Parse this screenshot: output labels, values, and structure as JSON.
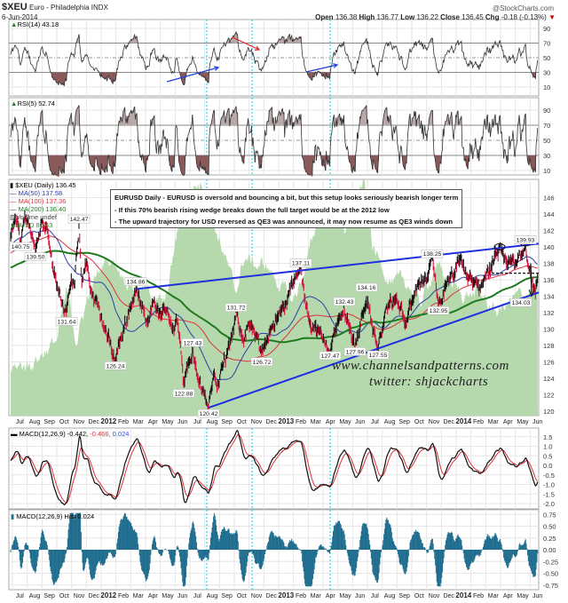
{
  "header": {
    "symbol": "$XEU",
    "name": "Euro - Philadelphia INDX",
    "date": "6-Jun-2014",
    "copyright": "@StockCharts.com",
    "open_label": "Open",
    "open": "136.38",
    "high_label": "High",
    "high": "136.77",
    "low_label": "Low",
    "low": "136.22",
    "close_label": "Close",
    "close": "136.45",
    "chg_label": "Chg",
    "chg": "-0.18 (-0.13%)",
    "chg_arrow": "▼"
  },
  "panels": {
    "rsi14_label": "RSI(14) 43.18",
    "rsi5_label": "RSI(5) 52.74",
    "price_label": "$XEU (Daily) 136.45",
    "ma50_label": "MA(50) 137.58",
    "ma100_label": "MA(100) 137.36",
    "ma200_label": "MA(200) 136.40",
    "volume_label": "Volume undef",
    "usd_label": "$USD 80.43",
    "macd_label": "MACD(12,26,9) -0.442,",
    "macd_signal": " -0.466,",
    "macd_hist_val": " 0.024",
    "hist_label": "MACD(12,26,9) Hist 0.024"
  },
  "note": {
    "line1": "EURUSD Daily - EURUSD is oversold and bouncing a bit, but this setup looks seriously bearish longer term",
    "line2": "- If this 70% bearish rising wedge breaks down the full target would be at the 2012 low",
    "line3": "- The upward trajectory for USD reversed as QE3 was announced, it may now resume as QE3 winds down"
  },
  "watermark": {
    "site": "www.channelsandpatterns.com",
    "twitter": "twitter: shjackcharts"
  },
  "colors": {
    "ma50": "#2b3fa8",
    "ma100": "#e0303c",
    "ma200": "#1e7a1e",
    "usd_area": "#b5d9ad",
    "trend": "#1f2fe0",
    "up": "#111111",
    "down": "#d0103a",
    "rsi_low": "#8a5a5a",
    "hist": "#1f6d8e",
    "event": "#00d0e0"
  },
  "chart_data": {
    "type": "line",
    "title": "$XEU Euro - Philadelphia INDX (Daily)",
    "x_ticks": [
      "Jul",
      "Aug",
      "Sep",
      "Oct",
      "Nov",
      "Dec",
      "2012",
      "Feb",
      "Mar",
      "Apr",
      "May",
      "Jun",
      "Jul",
      "Aug",
      "Sep",
      "Oct",
      "Nov",
      "Dec",
      "2013",
      "Feb",
      "Mar",
      "Apr",
      "May",
      "Jun",
      "Jul",
      "Aug",
      "Sep",
      "Oct",
      "Nov",
      "Dec",
      "2014",
      "Feb",
      "Mar",
      "Apr",
      "May",
      "Jun"
    ],
    "price_ticks": [
      120,
      122,
      124,
      126,
      128,
      130,
      132,
      134,
      136,
      138,
      140,
      142,
      144,
      146
    ],
    "rsi_ticks": [
      10,
      30,
      50,
      70,
      90
    ],
    "macd_ticks": [
      "1.5",
      "1.0",
      "0.5",
      "0.0",
      "-0.5",
      "-1.0",
      "-1.5",
      "-2.0"
    ],
    "hist_ticks": [
      "0.75",
      "0.50",
      "0.25",
      "0.00",
      "-0.25",
      "-0.50",
      "-0.75"
    ],
    "price_anchors": [
      [
        2011.49,
        141
      ],
      [
        2011.52,
        143.8
      ],
      [
        2011.545,
        140.75
      ],
      [
        2011.57,
        144.2
      ],
      [
        2011.6,
        142
      ],
      [
        2011.63,
        139.5
      ],
      [
        2011.66,
        143
      ],
      [
        2011.7,
        142.5
      ],
      [
        2011.73,
        137
      ],
      [
        2011.76,
        135
      ],
      [
        2011.805,
        131.64
      ],
      [
        2011.83,
        136
      ],
      [
        2011.85,
        135
      ],
      [
        2011.875,
        142.47
      ],
      [
        2011.89,
        136
      ],
      [
        2011.92,
        138
      ],
      [
        2011.95,
        134
      ],
      [
        2011.98,
        132.5
      ],
      [
        2012.02,
        130
      ],
      [
        2012.08,
        126.24
      ],
      [
        2012.1,
        128
      ],
      [
        2012.14,
        131
      ],
      [
        2012.195,
        134.86
      ],
      [
        2012.25,
        131
      ],
      [
        2012.3,
        133.5
      ],
      [
        2012.33,
        131.5
      ],
      [
        2012.37,
        132.5
      ],
      [
        2012.4,
        130.5
      ],
      [
        2012.43,
        131
      ],
      [
        2012.445,
        128
      ],
      [
        2012.465,
        122.88
      ],
      [
        2012.49,
        126
      ],
      [
        2012.515,
        127.43
      ],
      [
        2012.54,
        124
      ],
      [
        2012.57,
        123
      ],
      [
        2012.605,
        120.42
      ],
      [
        2012.63,
        124.5
      ],
      [
        2012.66,
        123.5
      ],
      [
        2012.7,
        126.5
      ],
      [
        2012.73,
        128
      ],
      [
        2012.76,
        131.72
      ],
      [
        2012.8,
        129
      ],
      [
        2012.83,
        130.5
      ],
      [
        2012.86,
        129.5
      ],
      [
        2012.905,
        126.72
      ],
      [
        2012.93,
        129
      ],
      [
        2012.96,
        130.5
      ],
      [
        2013.0,
        131.5
      ],
      [
        2013.04,
        133
      ],
      [
        2013.08,
        135.5
      ],
      [
        2013.125,
        137.11
      ],
      [
        2013.15,
        133
      ],
      [
        2013.18,
        131
      ],
      [
        2013.22,
        129.5
      ],
      [
        2013.29,
        127.47
      ],
      [
        2013.33,
        130.5
      ],
      [
        2013.37,
        132.43
      ],
      [
        2013.4,
        130
      ],
      [
        2013.43,
        127.96
      ],
      [
        2013.46,
        130.5
      ],
      [
        2013.495,
        134.16
      ],
      [
        2013.52,
        131
      ],
      [
        2013.56,
        127.55
      ],
      [
        2013.59,
        130.5
      ],
      [
        2013.62,
        133
      ],
      [
        2013.66,
        133.5
      ],
      [
        2013.69,
        132
      ],
      [
        2013.72,
        131.5
      ],
      [
        2013.76,
        134
      ],
      [
        2013.8,
        135.5
      ],
      [
        2013.835,
        136
      ],
      [
        2013.865,
        138.25
      ],
      [
        2013.88,
        136
      ],
      [
        2013.9,
        132.95
      ],
      [
        2013.93,
        134.5
      ],
      [
        2013.96,
        135.5
      ],
      [
        2014.0,
        137.5
      ],
      [
        2014.03,
        138
      ],
      [
        2014.06,
        136.5
      ],
      [
        2014.1,
        135.5
      ],
      [
        2014.13,
        135
      ],
      [
        2014.16,
        136.5
      ],
      [
        2014.2,
        137.5
      ],
      [
        2014.245,
        139.6
      ],
      [
        2014.27,
        138
      ],
      [
        2014.3,
        138.5
      ],
      [
        2014.33,
        137.8
      ],
      [
        2014.36,
        138.8
      ],
      [
        2014.39,
        139.93
      ],
      [
        2014.41,
        137.5
      ],
      [
        2014.43,
        136.2
      ],
      [
        2014.445,
        134.03
      ],
      [
        2014.46,
        136.45
      ]
    ],
    "usd_anchors": [
      [
        2011.49,
        75.2
      ],
      [
        2011.6,
        75.5
      ],
      [
        2011.755,
        76.7
      ],
      [
        2011.805,
        78.9
      ],
      [
        2011.86,
        76.7
      ],
      [
        2011.93,
        78.9
      ],
      [
        2012.03,
        80.7
      ],
      [
        2012.08,
        80.5
      ],
      [
        2012.13,
        79.8
      ],
      [
        2012.18,
        79.4
      ],
      [
        2012.28,
        78.9
      ],
      [
        2012.36,
        78.3
      ],
      [
        2012.43,
        82.0
      ],
      [
        2012.5,
        84.1
      ],
      [
        2012.58,
        84.4
      ],
      [
        2012.65,
        82.0
      ],
      [
        2012.7,
        80.7
      ],
      [
        2012.755,
        78.9
      ],
      [
        2012.805,
        80.7
      ],
      [
        2012.88,
        80.3
      ],
      [
        2012.93,
        80.3
      ],
      [
        2013.005,
        79.4
      ],
      [
        2013.08,
        78.5
      ],
      [
        2013.155,
        80.3
      ],
      [
        2013.23,
        82.9
      ],
      [
        2013.28,
        83.8
      ],
      [
        2013.33,
        83.4
      ],
      [
        2013.38,
        82.0
      ],
      [
        2013.43,
        83.8
      ],
      [
        2013.48,
        84.3
      ],
      [
        2013.53,
        81.2
      ],
      [
        2013.58,
        80.3
      ],
      [
        2013.655,
        79.4
      ],
      [
        2013.73,
        79.4
      ],
      [
        2013.805,
        78.5
      ],
      [
        2013.88,
        80.3
      ],
      [
        2013.93,
        79.8
      ],
      [
        2014.03,
        78.9
      ],
      [
        2014.13,
        78.9
      ],
      [
        2014.23,
        78.0
      ],
      [
        2014.3,
        78.5
      ],
      [
        2014.38,
        78.9
      ],
      [
        2014.46,
        79.4
      ]
    ],
    "annotations": [
      {
        "t": 2011.545,
        "price": 140.75,
        "label": "140.75",
        "pos": "below"
      },
      {
        "t": 2011.63,
        "price": 139.5,
        "label": "139.50",
        "pos": "below"
      },
      {
        "t": 2011.805,
        "price": 131.64,
        "label": "131.64",
        "pos": "below"
      },
      {
        "t": 2011.875,
        "price": 142.47,
        "label": "142.47",
        "pos": "above"
      },
      {
        "t": 2012.08,
        "price": 126.24,
        "label": "126.24",
        "pos": "below"
      },
      {
        "t": 2012.195,
        "price": 134.86,
        "label": "134.86",
        "pos": "above"
      },
      {
        "t": 2012.465,
        "price": 122.88,
        "label": "122.88",
        "pos": "below"
      },
      {
        "t": 2012.515,
        "price": 127.43,
        "label": "127.43",
        "pos": "above"
      },
      {
        "t": 2012.605,
        "price": 120.42,
        "label": "120.42",
        "pos": "below"
      },
      {
        "t": 2012.76,
        "price": 131.72,
        "label": "131.72",
        "pos": "above"
      },
      {
        "t": 2012.905,
        "price": 126.72,
        "label": "126.72",
        "pos": "below"
      },
      {
        "t": 2013.125,
        "price": 137.11,
        "label": "137.11",
        "pos": "above"
      },
      {
        "t": 2013.29,
        "price": 127.47,
        "label": "127.47",
        "pos": "below"
      },
      {
        "t": 2013.37,
        "price": 132.43,
        "label": "132.43",
        "pos": "above"
      },
      {
        "t": 2013.43,
        "price": 127.96,
        "label": "127.96",
        "pos": "below"
      },
      {
        "t": 2013.495,
        "price": 134.16,
        "label": "134.16",
        "pos": "above"
      },
      {
        "t": 2013.56,
        "price": 127.55,
        "label": "127.55",
        "pos": "below"
      },
      {
        "t": 2013.865,
        "price": 138.25,
        "label": "138.25",
        "pos": "above"
      },
      {
        "t": 2013.9,
        "price": 132.95,
        "label": "132.95",
        "pos": "below"
      },
      {
        "t": 2014.39,
        "price": 139.93,
        "label": "139.93",
        "pos": "above"
      },
      {
        "t": 2014.445,
        "price": 134.03,
        "label": "134.03",
        "pos": "right"
      }
    ],
    "trendlines": [
      {
        "name": "wedge-upper",
        "from": [
          2012.195,
          134.86
        ],
        "to": [
          2014.55,
          140.6
        ]
      },
      {
        "name": "wedge-lower",
        "from": [
          2012.605,
          120.42
        ],
        "to": [
          2014.55,
          135.1
        ]
      }
    ],
    "support_line": {
      "from": 2014.2,
      "to": 2014.47,
      "price": 136.8
    },
    "event_lines": [
      2012.595,
      2012.85,
      2013.29
    ]
  }
}
